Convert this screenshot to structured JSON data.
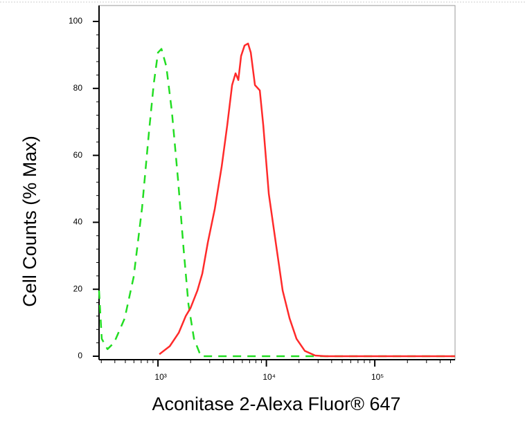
{
  "chart_data": {
    "type": "line",
    "xlabel": "Aconitase 2-Alexa Fluor® 647",
    "ylabel": "Cell Counts (% Max)",
    "xscale": "log",
    "xlim": [
      286,
      550000
    ],
    "ylim": [
      0,
      100
    ],
    "xticks": [
      {
        "value": 1000,
        "label": "10³"
      },
      {
        "value": 10000,
        "label": "10⁴"
      },
      {
        "value": 100000,
        "label": "10⁵"
      }
    ],
    "yticks": [
      0,
      20,
      40,
      60,
      80,
      100
    ],
    "series": [
      {
        "color": "#22dd22",
        "dash": true,
        "x": [
          286,
          303,
          342,
          395,
          493,
          597,
          713,
          826,
          915,
          1000,
          1076,
          1193,
          1343,
          1532,
          1723,
          1910,
          2148,
          2488,
          12560,
          114000,
          550000
        ],
        "values": [
          19.6,
          5.2,
          2.1,
          4.1,
          11.3,
          23.7,
          44.3,
          67,
          81.4,
          90.7,
          91.8,
          86.6,
          73.2,
          52.6,
          32,
          15.5,
          5.2,
          0,
          0,
          0,
          0
        ]
      },
      {
        "color": "#ff2a2a",
        "dash": false,
        "x": [
          1030,
          1285,
          1556,
          1803,
          1997,
          2311,
          2563,
          2884,
          3342,
          3871,
          4355,
          4828,
          5198,
          5510,
          5844,
          6290,
          6773,
          7184,
          7848,
          8696,
          9358,
          10530,
          12190,
          14120,
          16360,
          18950,
          22630,
          28200,
          35170,
          550000
        ],
        "values": [
          0.6,
          3,
          7,
          12,
          14.4,
          19.6,
          24.7,
          34,
          44,
          56.7,
          69,
          81,
          84.5,
          82.5,
          89.7,
          92.8,
          93.4,
          90.7,
          81,
          79.4,
          69,
          48.5,
          34,
          19.6,
          11.3,
          5.2,
          1.6,
          0.2,
          0,
          0
        ]
      }
    ]
  }
}
